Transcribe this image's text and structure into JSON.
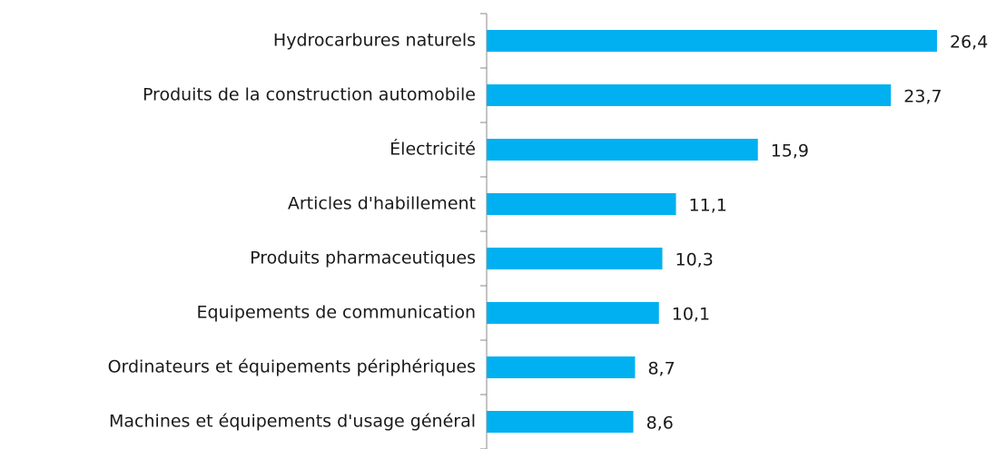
{
  "chart_data": {
    "type": "barh",
    "categories": [
      "Hydrocarbures naturels",
      "Produits de la construction automobile",
      "Électricité",
      "Articles d'habillement",
      "Produits pharmaceutiques",
      "Equipements de communication",
      "Ordinateurs et équipements périphériques",
      "Machines et équipements d'usage général"
    ],
    "values": [
      26.4,
      23.7,
      15.9,
      11.1,
      10.3,
      10.1,
      8.7,
      8.6
    ],
    "value_labels": [
      "26,4",
      "23,7",
      "15,9",
      "11,1",
      "10,3",
      "10,1",
      "8,7",
      "8,6"
    ],
    "color": "#00b0f0",
    "xlim": [
      0,
      26.4
    ]
  }
}
